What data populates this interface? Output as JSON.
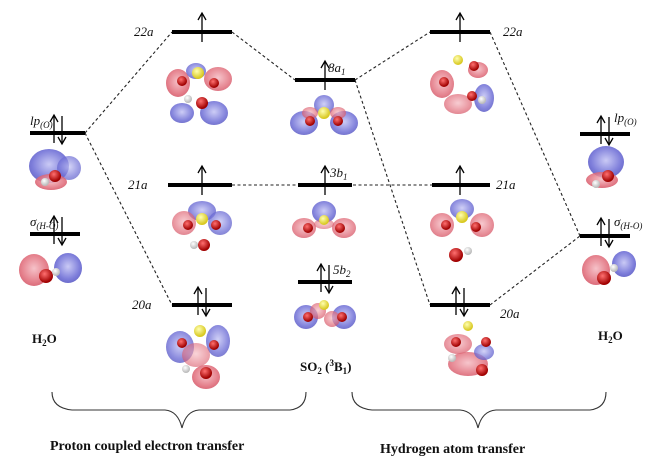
{
  "levels": {
    "pcet_22a": "22a",
    "pcet_21a": "21a",
    "pcet_20a": "20a",
    "so2_8a1_main": "8a",
    "so2_8a1_sub": "1",
    "so2_3b1_main": "3b",
    "so2_3b1_sub": "1",
    "so2_5b2_main": "5b",
    "so2_5b2_sub": "2",
    "hat_22a": "22a",
    "hat_21a": "21a",
    "hat_20a": "20a",
    "lp_main": "lp",
    "lp_sub": "(O)",
    "sigma_main": "σ",
    "sigma_sub": "(H-O)"
  },
  "species": {
    "water_left": "H",
    "water_left_sub": "2",
    "water_left_tail": "O",
    "water_right": "H",
    "water_right_sub": "2",
    "water_right_tail": "O",
    "so2_main": "SO",
    "so2_sub": "2",
    "so2_state_open": " (",
    "so2_state_sup": "3",
    "so2_state_main": "B",
    "so2_state_sub": "1",
    "so2_state_close": ")"
  },
  "captions": {
    "left": "Proton coupled electron transfer",
    "right": "Hydrogen atom transfer"
  },
  "colors": {
    "orbital_red": "#e06a78",
    "orbital_blue": "#6f6fd6",
    "sulfur": "#e8e040",
    "oxygen": "#c01818",
    "hydrogen": "#f2f2f2"
  }
}
